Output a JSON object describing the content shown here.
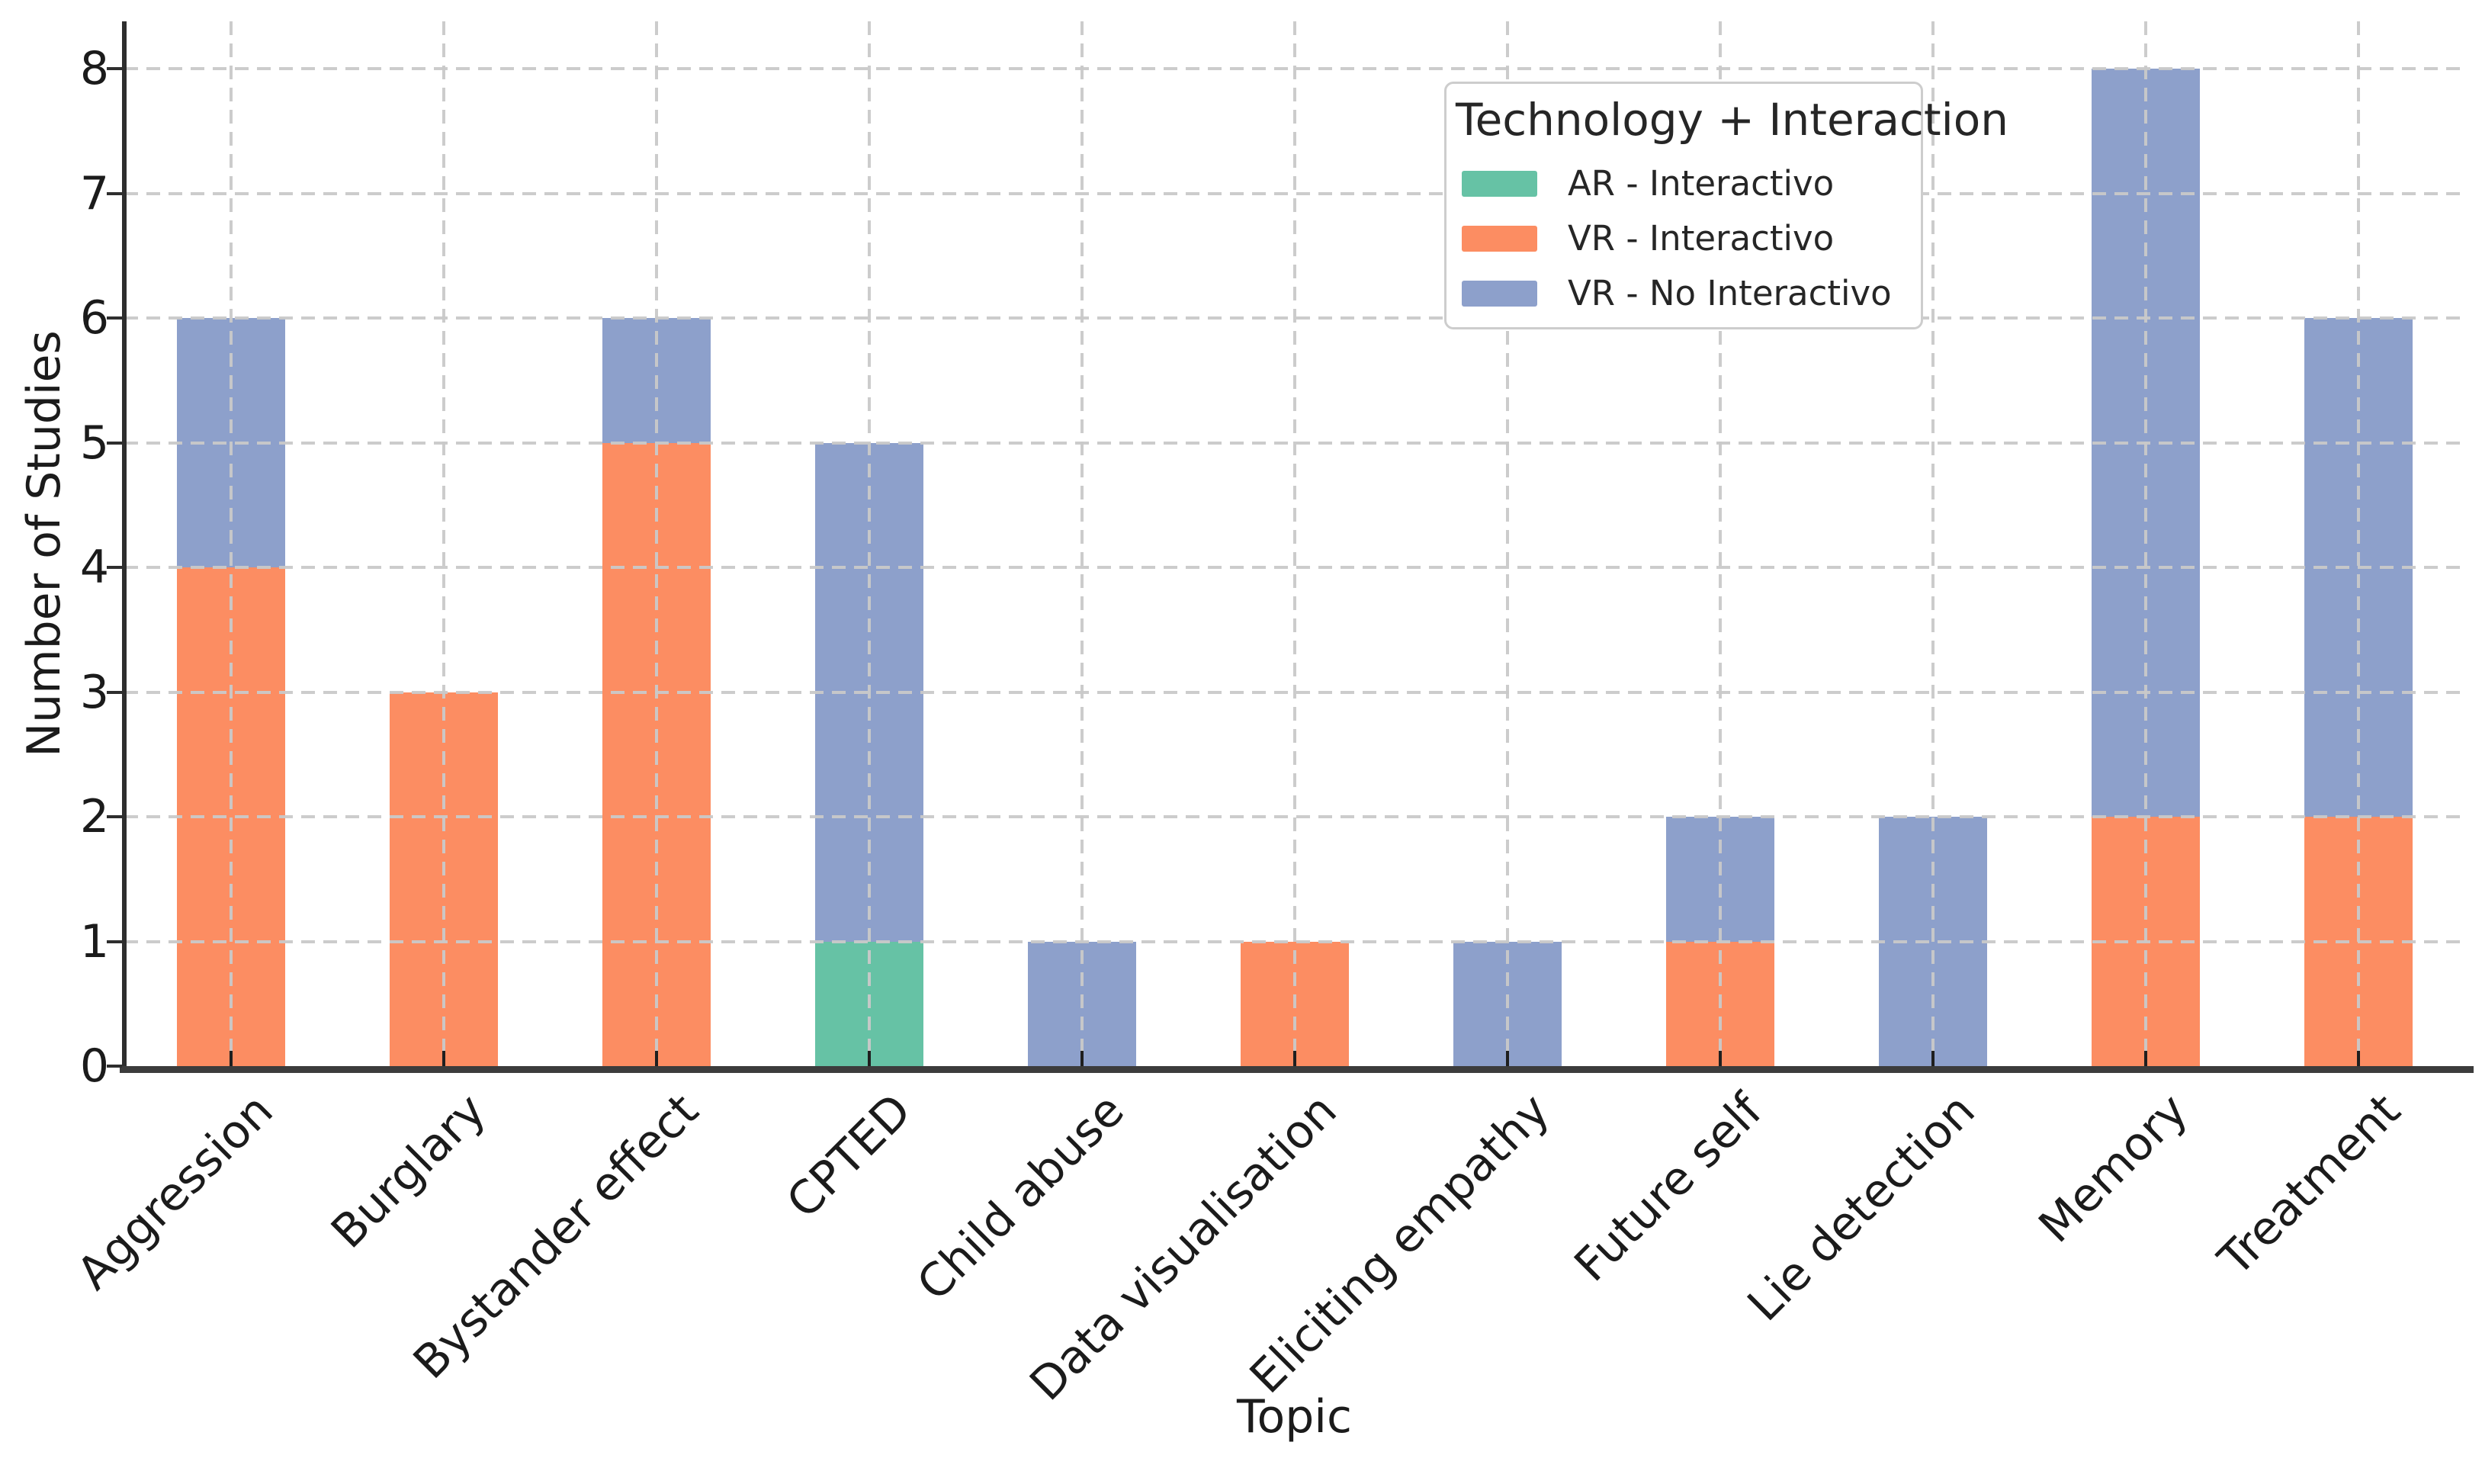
{
  "chart_data": {
    "type": "bar",
    "stacked": true,
    "title": "",
    "xlabel": "Topic",
    "ylabel": "Number of Studies",
    "ylim": [
      0,
      8.38
    ],
    "yticks": [
      0,
      1,
      2,
      3,
      4,
      5,
      6,
      7,
      8
    ],
    "grid": true,
    "grid_style": "dashed",
    "legend": {
      "title": "Technology + Interaction",
      "position": "upper-right"
    },
    "categories": [
      "Aggression",
      "Burglary",
      "Bystander effect",
      "CPTED",
      "Child abuse",
      "Data visualisation",
      "Eliciting empathy",
      "Future self",
      "Lie detection",
      "Memory",
      "Treatment"
    ],
    "series": [
      {
        "name": "AR - Interactivo",
        "color": "#66c2a5",
        "values": [
          0,
          0,
          0,
          1,
          0,
          0,
          0,
          0,
          0,
          0,
          0
        ]
      },
      {
        "name": "VR - Interactivo",
        "color": "#fc8d62",
        "values": [
          4,
          3,
          5,
          0,
          0,
          1,
          0,
          1,
          0,
          2,
          2
        ]
      },
      {
        "name": "VR - No Interactivo",
        "color": "#8da0cb",
        "values": [
          2,
          0,
          1,
          4,
          1,
          0,
          1,
          1,
          2,
          6,
          4
        ]
      }
    ],
    "totals": [
      6,
      3,
      6,
      5,
      1,
      1,
      1,
      2,
      2,
      8,
      6
    ],
    "colors": {
      "grid": "#c9c9c9",
      "y_spine": "#2e2e2e",
      "x_spine": "#3c3c3c",
      "text": "#1b1b1b"
    }
  }
}
